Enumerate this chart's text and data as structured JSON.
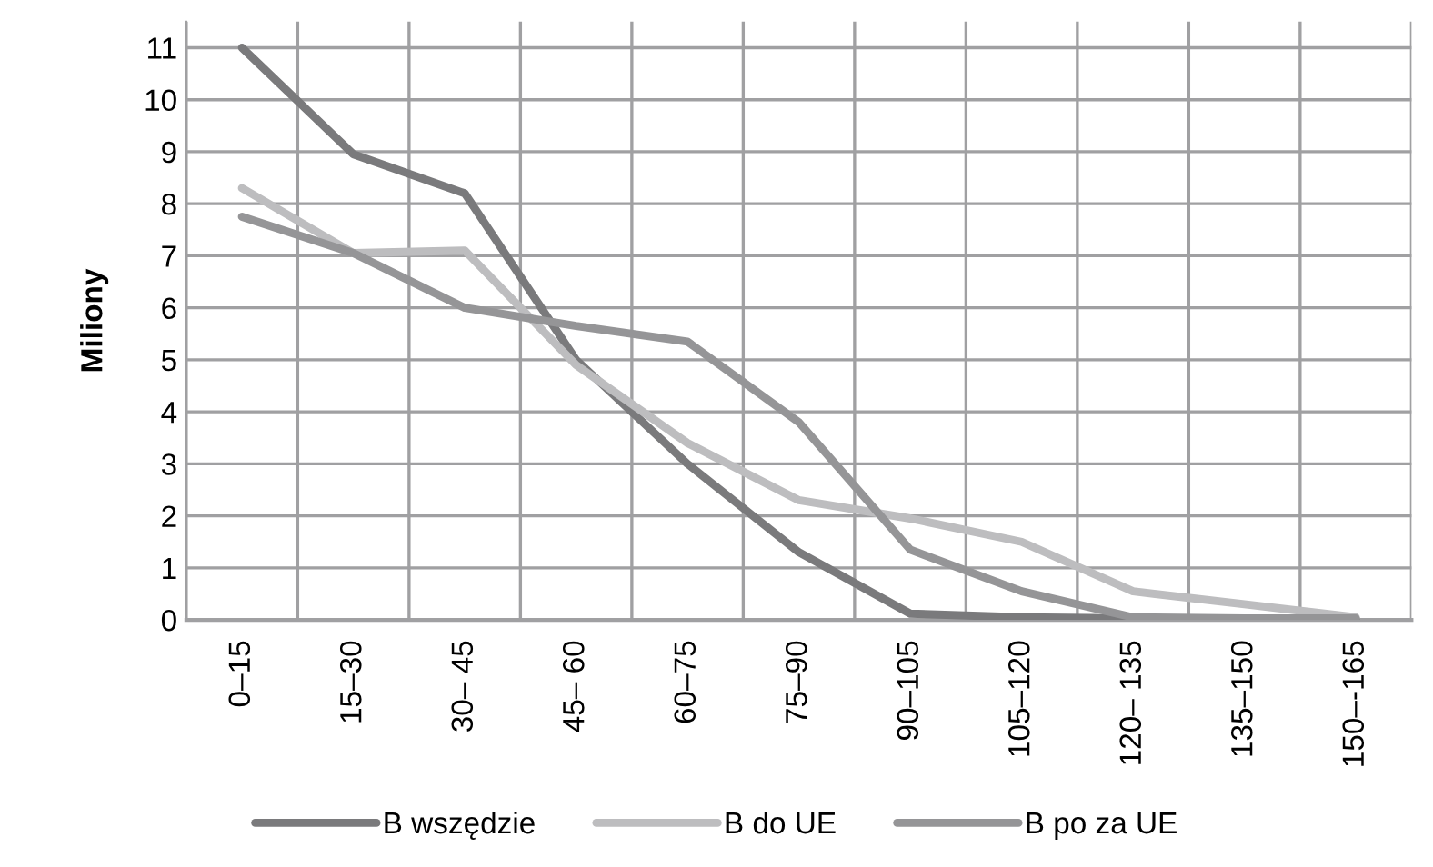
{
  "chart_data": {
    "type": "line",
    "ylabel": "Miliony",
    "categories": [
      "0–15",
      "15–30",
      "30– 45",
      "45– 60",
      "60–75",
      "75–90",
      "90–105",
      "105–120",
      "120– 135",
      "135–150",
      "150–-165"
    ],
    "series": [
      {
        "name": "B wszędzie",
        "color": "#7a7a7c",
        "values": [
          11,
          8.95,
          8.2,
          5.0,
          3.0,
          1.3,
          0.12,
          0.05,
          0.03,
          0.02,
          0.02
        ]
      },
      {
        "name": "B do UE",
        "color": "#bdbdbf",
        "values": [
          8.3,
          7.05,
          7.1,
          4.9,
          3.4,
          2.3,
          1.95,
          1.5,
          0.55,
          0.3,
          0.05
        ]
      },
      {
        "name": "B po za UE",
        "color": "#959597",
        "values": [
          7.75,
          7.05,
          6.0,
          5.65,
          5.35,
          3.8,
          1.35,
          0.55,
          0.05,
          0.03,
          0.03
        ]
      }
    ],
    "ylim": [
      0,
      11.5
    ],
    "yticks": [
      0,
      1,
      2,
      3,
      4,
      5,
      6,
      7,
      8,
      9,
      10,
      11
    ],
    "grid": true,
    "legend": "bottom",
    "marker": "none",
    "line_style": "solid"
  }
}
